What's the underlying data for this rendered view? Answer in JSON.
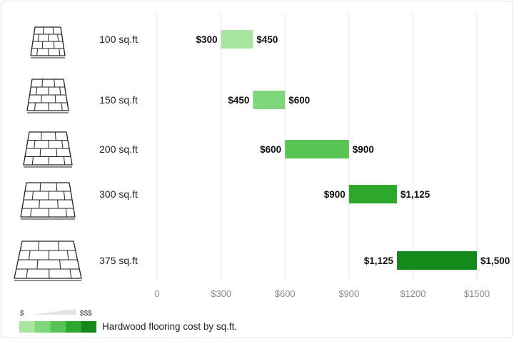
{
  "chart_data": {
    "type": "bar",
    "categories": [
      "100 sq.ft",
      "150 sq.ft",
      "200 sq.ft",
      "300 sq.ft",
      "375 sq.ft"
    ],
    "series": [
      {
        "values": [
          [
            300,
            450
          ],
          [
            450,
            600
          ],
          [
            600,
            900
          ],
          [
            900,
            1125
          ],
          [
            1125,
            1500
          ]
        ]
      }
    ],
    "data_labels": {
      "low": [
        "$300",
        "$450",
        "$600",
        "$900",
        "$1,125"
      ],
      "high": [
        "$450",
        "$600",
        "$900",
        "$1,125",
        "$1,500"
      ]
    },
    "x_ticks": [
      0,
      300,
      600,
      900,
      1200,
      1500
    ],
    "x_tick_labels": [
      "0",
      "$300",
      "$600",
      "$900",
      "$1200",
      "$1500"
    ],
    "xlim": [
      0,
      1500
    ],
    "grid": true,
    "bar_colors": [
      "#a6e6a0",
      "#7fd67a",
      "#57c453",
      "#2ea82c",
      "#15891a"
    ]
  },
  "legend": {
    "low_label": "$",
    "high_label": "$$$",
    "title": "Hardwood flooring cost by sq.ft.",
    "swatches": [
      "#a6e6a0",
      "#7fd67a",
      "#57c453",
      "#2ea82c",
      "#15891a"
    ]
  },
  "icons": [
    "floor-plan-icon-100",
    "floor-plan-icon-150",
    "floor-plan-icon-200",
    "floor-plan-icon-300",
    "floor-plan-icon-375"
  ]
}
